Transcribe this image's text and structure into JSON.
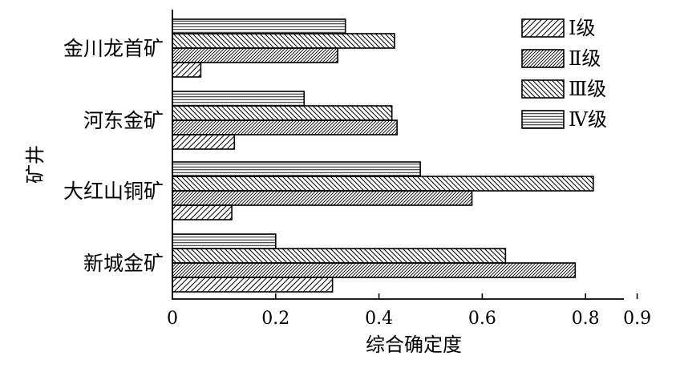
{
  "chart_data": {
    "type": "bar",
    "orientation": "horizontal",
    "categories": [
      "新城金矿",
      "大红山铜矿",
      "河东金矿",
      "金川龙首矿"
    ],
    "series": [
      {
        "name": "Ⅰ级",
        "values": [
          0.31,
          0.115,
          0.12,
          0.055
        ]
      },
      {
        "name": "Ⅱ级",
        "values": [
          0.78,
          0.58,
          0.435,
          0.32
        ]
      },
      {
        "name": "Ⅲ级",
        "values": [
          0.645,
          0.815,
          0.425,
          0.43
        ]
      },
      {
        "name": "Ⅳ级",
        "values": [
          0.2,
          0.48,
          0.255,
          0.335
        ]
      }
    ],
    "xlabel": "综合确定度",
    "ylabel": "矿井",
    "xlim": [
      0,
      0.9
    ],
    "xticks": [
      "0",
      "0.2",
      "0.4",
      "0.6",
      "0.8",
      "0.9"
    ],
    "xtick_values": [
      0,
      0.2,
      0.4,
      0.6,
      0.8,
      0.9
    ],
    "legend_position": "top-right",
    "grid": false
  }
}
